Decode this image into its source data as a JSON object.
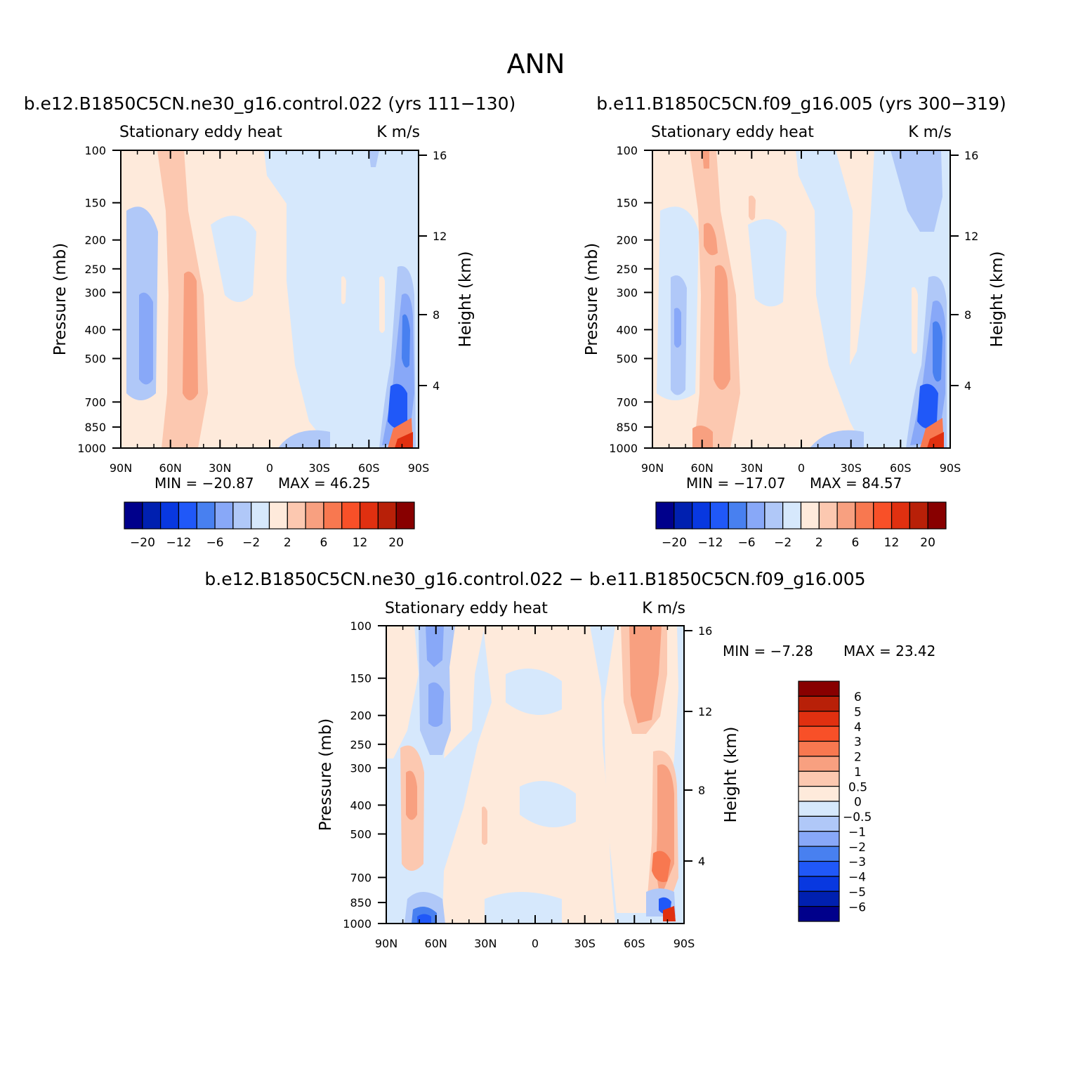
{
  "page_title": "ANN",
  "chart_data": [
    {
      "type": "heatmap",
      "title": "b.e12.B1850C5CN.ne30_g16.control.022 (yrs 111-130)",
      "subtitle_left": "Stationary eddy heat",
      "subtitle_right": "K m/s",
      "ylabel": "Pressure (mb)",
      "ylabel2": "Height (km)",
      "x_ticks": [
        "90N",
        "60N",
        "30N",
        "0",
        "30S",
        "60S",
        "90S"
      ],
      "y_ticks": [
        "100",
        "150",
        "200",
        "250",
        "300",
        "400",
        "500",
        "700",
        "850",
        "1000"
      ],
      "y2_ticks": [
        "16",
        "12",
        "8",
        "4"
      ],
      "min_label": "MIN = -20.87",
      "max_label": "MAX = 46.25",
      "colorbar_ticks": [
        "-20",
        "-12",
        "-6",
        "-2",
        "2",
        "6",
        "12",
        "20"
      ]
    },
    {
      "type": "heatmap",
      "title": "b.e11.B1850C5CN.f09_g16.005 (yrs 300-319)",
      "subtitle_left": "Stationary eddy heat",
      "subtitle_right": "K m/s",
      "ylabel": "Pressure (mb)",
      "ylabel2": "Height (km)",
      "x_ticks": [
        "90N",
        "60N",
        "30N",
        "0",
        "30S",
        "60S",
        "90S"
      ],
      "y_ticks": [
        "100",
        "150",
        "200",
        "250",
        "300",
        "400",
        "500",
        "700",
        "850",
        "1000"
      ],
      "y2_ticks": [
        "16",
        "12",
        "8",
        "4"
      ],
      "min_label": "MIN = -17.07",
      "max_label": "MAX = 84.57",
      "colorbar_ticks": [
        "-20",
        "-12",
        "-6",
        "-2",
        "2",
        "6",
        "12",
        "20"
      ]
    },
    {
      "type": "heatmap",
      "title": "b.e12.B1850C5CN.ne30_g16.control.022 - b.e11.B1850C5CN.f09_g16.005",
      "subtitle_left": "Stationary eddy heat",
      "subtitle_right": "K m/s",
      "ylabel": "Pressure (mb)",
      "ylabel2": "Height (km)",
      "x_ticks": [
        "90N",
        "60N",
        "30N",
        "0",
        "30S",
        "60S",
        "90S"
      ],
      "y_ticks": [
        "100",
        "150",
        "200",
        "250",
        "300",
        "400",
        "500",
        "700",
        "850",
        "1000"
      ],
      "y2_ticks": [
        "16",
        "12",
        "8",
        "4"
      ],
      "min_label": "MIN = -7.28",
      "max_label": "MAX = 23.42",
      "colorbar_ticks": [
        "6",
        "5",
        "4",
        "3",
        "2",
        "1",
        "0.5",
        "0",
        "-0.5",
        "-1",
        "-2",
        "-3",
        "-4",
        "-5",
        "-6"
      ]
    }
  ],
  "colors": {
    "palette": [
      "#00008b",
      "#0020b0",
      "#0838e0",
      "#2058f8",
      "#4880f0",
      "#88a8f8",
      "#b0c8f8",
      "#d6e8fc",
      "#feeadb",
      "#fcc8b0",
      "#f8a080",
      "#f87850",
      "#f85028",
      "#e03010",
      "#b82008",
      "#880000"
    ]
  }
}
